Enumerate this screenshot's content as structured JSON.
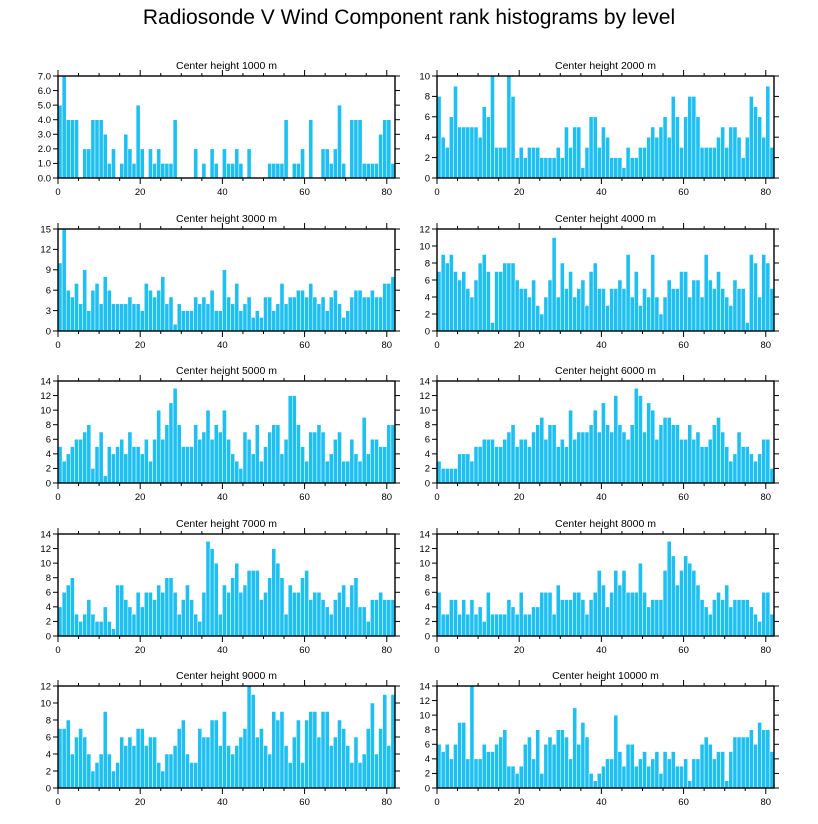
{
  "figure": {
    "title": "Radiosonde V Wind Component rank histograms by level",
    "bar_color": "#1ec0f2"
  },
  "chart_data": [
    {
      "type": "bar",
      "title": "Center height 1000 m",
      "xlim": [
        0,
        82
      ],
      "ylim": [
        0,
        7
      ],
      "yticks": [
        "0.0",
        "1.0",
        "2.0",
        "3.0",
        "4.0",
        "5.0",
        "6.0",
        "7.0"
      ],
      "xticks": [
        0,
        20,
        40,
        60,
        80
      ],
      "values": [
        5,
        7,
        4,
        4,
        4,
        0,
        2,
        2,
        4,
        4,
        4,
        3,
        1,
        2,
        0,
        1,
        3,
        2,
        1,
        5,
        2,
        0,
        2,
        1,
        2,
        1,
        1,
        1,
        4,
        0,
        0,
        0,
        0,
        2,
        0,
        1,
        0,
        2,
        1,
        0,
        2,
        1,
        1,
        2,
        1,
        0,
        2,
        0,
        0,
        0,
        0,
        1,
        1,
        1,
        1,
        4,
        0,
        1,
        1,
        2,
        0,
        4,
        0,
        0,
        2,
        2,
        1,
        2,
        5,
        1,
        0,
        4,
        4,
        4,
        1,
        1,
        1,
        1,
        3,
        4,
        4,
        1
      ]
    },
    {
      "type": "bar",
      "title": "Center height 2000 m",
      "xlim": [
        0,
        82
      ],
      "ylim": [
        0,
        10
      ],
      "yticks": [
        "0",
        "2",
        "4",
        "6",
        "8",
        "10"
      ],
      "xticks": [
        0,
        20,
        40,
        60,
        80
      ],
      "values": [
        8,
        4,
        3,
        6,
        9,
        5,
        5,
        5,
        5,
        5,
        4,
        7,
        6,
        10,
        3,
        3,
        3,
        10,
        8,
        2,
        3,
        2,
        3,
        3,
        3,
        2,
        2,
        2,
        2,
        3,
        2,
        5,
        3,
        5,
        5,
        1,
        3,
        6,
        6,
        3,
        5,
        4,
        2,
        2,
        2,
        1,
        3,
        2,
        2,
        3,
        3,
        4,
        5,
        4,
        5,
        6,
        4,
        8,
        6,
        3,
        6,
        8,
        8,
        6,
        3,
        3,
        3,
        3,
        4,
        5,
        3,
        5,
        5,
        4,
        2,
        4,
        8,
        7,
        6,
        4,
        9,
        3
      ]
    },
    {
      "type": "bar",
      "title": "Center height 3000 m",
      "xlim": [
        0,
        82
      ],
      "ylim": [
        0,
        15
      ],
      "yticks": [
        "0",
        "3",
        "6",
        "9",
        "12",
        "15"
      ],
      "xticks": [
        0,
        20,
        40,
        60,
        80
      ],
      "values": [
        10,
        15,
        6,
        5,
        7,
        4,
        9,
        3,
        6,
        7,
        4,
        8,
        6,
        4,
        4,
        4,
        4,
        5,
        4,
        4,
        3,
        7,
        6,
        5,
        6,
        8,
        4,
        5,
        1,
        4,
        3,
        3,
        3,
        5,
        4,
        5,
        4,
        6,
        3,
        3,
        9,
        5,
        4,
        7,
        3,
        4,
        5,
        2,
        3,
        2,
        5,
        5,
        3,
        4,
        7,
        4,
        5,
        5,
        6,
        6,
        5,
        7,
        5,
        4,
        5,
        3,
        5,
        6,
        4,
        2,
        3,
        5,
        6,
        6,
        5,
        5,
        6,
        5,
        5,
        7,
        7,
        8
      ]
    },
    {
      "type": "bar",
      "title": "Center height 4000 m",
      "xlim": [
        0,
        82
      ],
      "ylim": [
        0,
        12
      ],
      "yticks": [
        "0",
        "2",
        "4",
        "6",
        "8",
        "10",
        "12"
      ],
      "xticks": [
        0,
        20,
        40,
        60,
        80
      ],
      "values": [
        7,
        9,
        8,
        9,
        7,
        6,
        7,
        5,
        4,
        6,
        8,
        9,
        7,
        1,
        7,
        7,
        8,
        8,
        8,
        6,
        5,
        5,
        4,
        6,
        3,
        2,
        4,
        6,
        11,
        4,
        8,
        5,
        7,
        4,
        5,
        6,
        3,
        7,
        8,
        5,
        5,
        3,
        5,
        5,
        6,
        5,
        9,
        4,
        7,
        3,
        5,
        4,
        9,
        4,
        2,
        4,
        6,
        5,
        5,
        7,
        7,
        4,
        6,
        6,
        4,
        9,
        6,
        5,
        7,
        5,
        4,
        3,
        6,
        5,
        5,
        1,
        9,
        8,
        4,
        9,
        8,
        5
      ]
    },
    {
      "type": "bar",
      "title": "Center height 5000 m",
      "xlim": [
        0,
        82
      ],
      "ylim": [
        0,
        14
      ],
      "yticks": [
        "0",
        "2",
        "4",
        "6",
        "8",
        "10",
        "12",
        "14"
      ],
      "xticks": [
        0,
        20,
        40,
        60,
        80
      ],
      "values": [
        5,
        3,
        4,
        5,
        6,
        6,
        7,
        8,
        2,
        5,
        7,
        1,
        5,
        4,
        5,
        6,
        4,
        7,
        5,
        5,
        4,
        6,
        3,
        6,
        10,
        6,
        8,
        11,
        13,
        8,
        5,
        5,
        5,
        8,
        6,
        7,
        10,
        6,
        8,
        7,
        10,
        6,
        4,
        3,
        2,
        7,
        6,
        4,
        8,
        3,
        5,
        7,
        8,
        8,
        4,
        6,
        12,
        12,
        8,
        5,
        3,
        7,
        7,
        8,
        7,
        3,
        4,
        6,
        7,
        3,
        3,
        6,
        4,
        3,
        9,
        4,
        6,
        6,
        5,
        5,
        8,
        8
      ]
    },
    {
      "type": "bar",
      "title": "Center height 6000 m",
      "xlim": [
        0,
        82
      ],
      "ylim": [
        0,
        14
      ],
      "yticks": [
        "0",
        "2",
        "4",
        "6",
        "8",
        "10",
        "12",
        "14"
      ],
      "xticks": [
        0,
        20,
        40,
        60,
        80
      ],
      "values": [
        3,
        2,
        2,
        2,
        2,
        4,
        4,
        4,
        3,
        5,
        5,
        6,
        6,
        6,
        5,
        5,
        6,
        7,
        8,
        5,
        6,
        6,
        5,
        7,
        8,
        9,
        6,
        8,
        8,
        5,
        6,
        5,
        10,
        6,
        7,
        7,
        7,
        8,
        10,
        7,
        11,
        8,
        7,
        12,
        8,
        7,
        6,
        8,
        13,
        12,
        7,
        11,
        10,
        6,
        8,
        9,
        9,
        8,
        8,
        6,
        6,
        8,
        6,
        7,
        5,
        5,
        6,
        8,
        9,
        7,
        5,
        3,
        4,
        7,
        5,
        5,
        4,
        3,
        4,
        6,
        6,
        2
      ]
    },
    {
      "type": "bar",
      "title": "Center height 7000 m",
      "xlim": [
        0,
        82
      ],
      "ylim": [
        0,
        14
      ],
      "yticks": [
        "0",
        "2",
        "4",
        "6",
        "8",
        "10",
        "12",
        "14"
      ],
      "xticks": [
        0,
        20,
        40,
        60,
        80
      ],
      "values": [
        4,
        6,
        7,
        8,
        3,
        2,
        3,
        5,
        3,
        2,
        2,
        4,
        2,
        1,
        7,
        7,
        5,
        4,
        3,
        6,
        4,
        6,
        6,
        5,
        7,
        6,
        8,
        8,
        6,
        3,
        5,
        7,
        5,
        3,
        2,
        6,
        13,
        12,
        10,
        3,
        7,
        6,
        8,
        10,
        6,
        7,
        9,
        9,
        9,
        5,
        6,
        8,
        12,
        10,
        8,
        3,
        7,
        6,
        6,
        8,
        9,
        5,
        6,
        6,
        5,
        4,
        3,
        5,
        6,
        7,
        4,
        7,
        8,
        4,
        4,
        2,
        5,
        5,
        6,
        5,
        5,
        5
      ]
    },
    {
      "type": "bar",
      "title": "Center height 8000 m",
      "xlim": [
        0,
        82
      ],
      "ylim": [
        0,
        14
      ],
      "yticks": [
        "0",
        "2",
        "4",
        "6",
        "8",
        "10",
        "12",
        "14"
      ],
      "xticks": [
        0,
        20,
        40,
        60,
        80
      ],
      "values": [
        6,
        3,
        3,
        5,
        5,
        3,
        5,
        3,
        5,
        3,
        4,
        2,
        6,
        3,
        3,
        3,
        3,
        5,
        4,
        3,
        6,
        3,
        3,
        4,
        4,
        6,
        6,
        6,
        3,
        7,
        5,
        5,
        5,
        6,
        6,
        5,
        3,
        5,
        6,
        9,
        7,
        4,
        6,
        9,
        7,
        9,
        6,
        6,
        6,
        10,
        6,
        4,
        5,
        5,
        5,
        9,
        13,
        11,
        7,
        9,
        11,
        10,
        9,
        7,
        5,
        4,
        3,
        5,
        6,
        5,
        7,
        4,
        5,
        5,
        5,
        5,
        4,
        3,
        2,
        6,
        6,
        3
      ]
    },
    {
      "type": "bar",
      "title": "Center height 9000 m",
      "xlim": [
        0,
        82
      ],
      "ylim": [
        0,
        12
      ],
      "yticks": [
        "0",
        "2",
        "4",
        "6",
        "8",
        "10",
        "12"
      ],
      "xticks": [
        0,
        20,
        40,
        60,
        80
      ],
      "values": [
        7,
        7,
        8,
        4,
        6,
        7,
        6,
        4,
        2,
        3,
        4,
        9,
        4,
        2,
        3,
        6,
        5,
        6,
        5,
        7,
        7,
        5,
        6,
        6,
        3,
        2,
        4,
        4,
        5,
        7,
        8,
        4,
        3,
        3,
        7,
        6,
        6,
        8,
        8,
        5,
        9,
        5,
        4,
        5,
        6,
        7,
        12,
        11,
        6,
        7,
        5,
        4,
        9,
        8,
        9,
        5,
        3,
        6,
        8,
        3,
        8,
        9,
        9,
        6,
        9,
        9,
        5,
        6,
        8,
        7,
        5,
        3,
        6,
        3,
        4,
        7,
        10,
        4,
        7,
        11,
        5,
        11
      ]
    },
    {
      "type": "bar",
      "title": "Center height 10000 m",
      "xlim": [
        0,
        82
      ],
      "ylim": [
        0,
        14
      ],
      "yticks": [
        "0",
        "2",
        "4",
        "6",
        "8",
        "10",
        "12",
        "14"
      ],
      "xticks": [
        0,
        20,
        40,
        60,
        80
      ],
      "values": [
        6,
        5,
        6,
        4,
        6,
        9,
        9,
        4,
        14,
        4,
        4,
        6,
        5,
        5,
        6,
        7,
        8,
        3,
        3,
        2,
        3,
        6,
        7,
        4,
        8,
        2,
        6,
        7,
        6,
        8,
        8,
        7,
        4,
        11,
        6,
        9,
        7,
        2,
        1,
        2,
        3,
        4,
        4,
        10,
        5,
        3,
        6,
        6,
        3,
        4,
        5,
        3,
        4,
        5,
        2,
        5,
        4,
        5,
        3,
        3,
        4,
        1,
        4,
        4,
        6,
        7,
        6,
        4,
        5,
        5,
        1,
        5,
        7,
        7,
        7,
        7,
        8,
        6,
        9,
        8,
        8,
        5
      ]
    }
  ]
}
